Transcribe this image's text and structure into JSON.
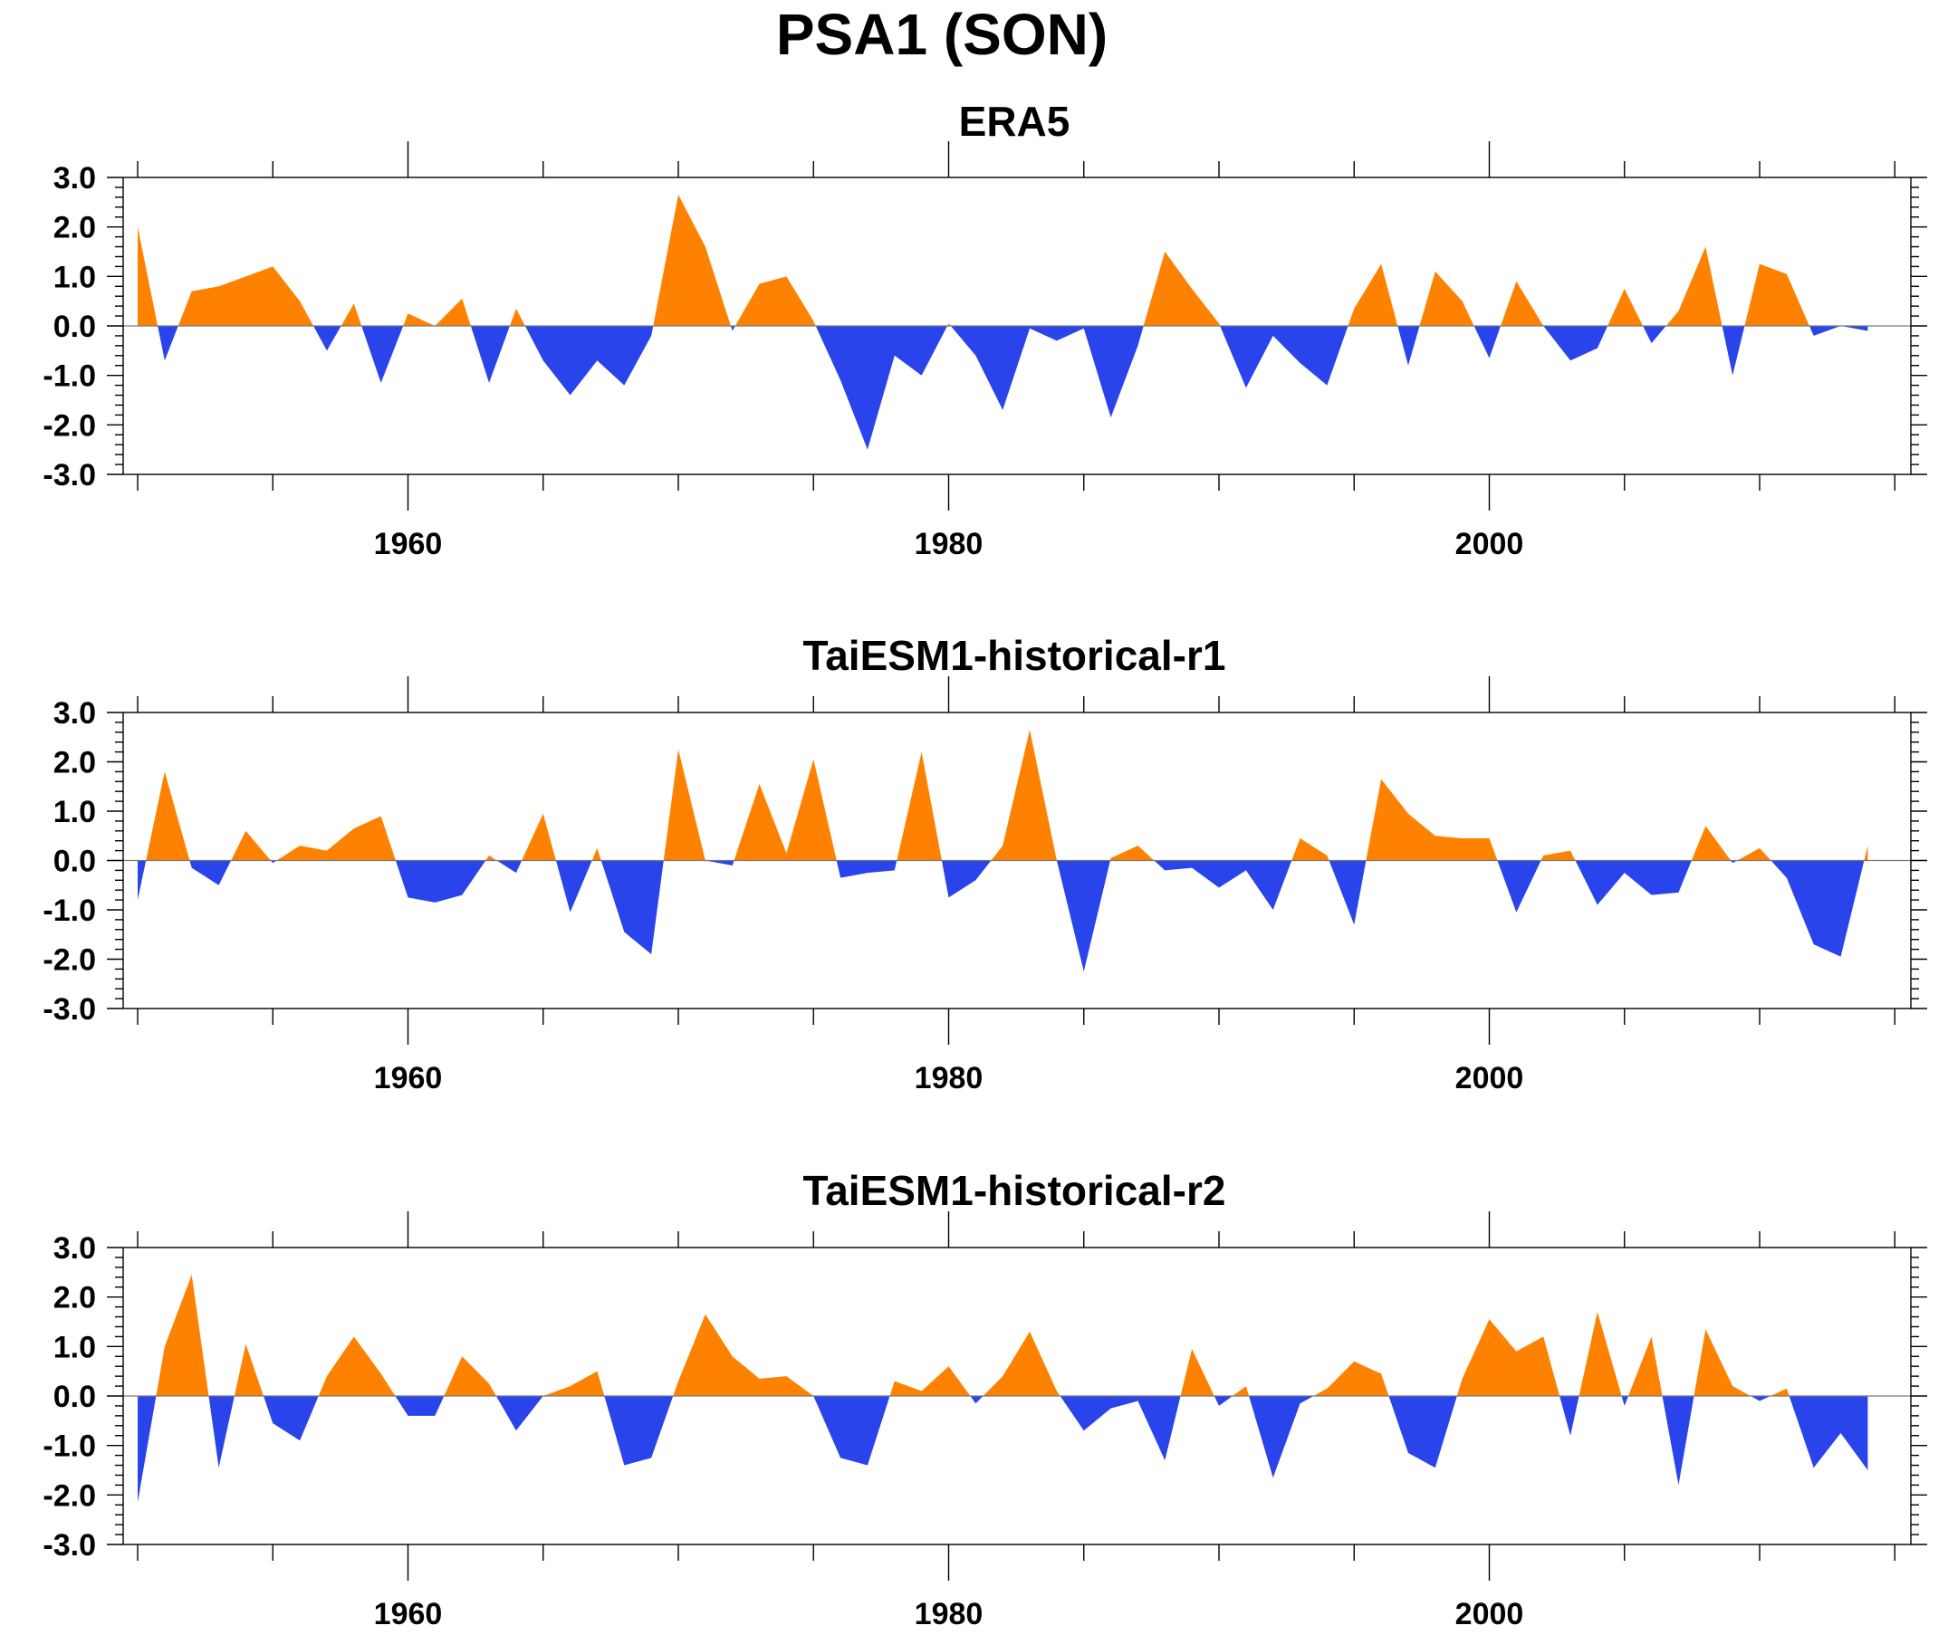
{
  "title": "PSA1 (SON)",
  "colors": {
    "positive": "#FF8100",
    "negative": "#2A44EB"
  },
  "chart_data": [
    {
      "type": "area",
      "title": "ERA5",
      "xlabel": "",
      "ylabel": "",
      "xlim": [
        1950,
        2015
      ],
      "ylim": [
        -3,
        3
      ],
      "x_ticks": [
        1960,
        1980,
        2000
      ],
      "y_ticks": [
        "-3.0",
        "-2.0",
        "-1.0",
        "0.0",
        "1.0",
        "2.0",
        "3.0"
      ],
      "grid": false,
      "x": [
        1950,
        1951,
        1952,
        1953,
        1954,
        1955,
        1956,
        1957,
        1958,
        1959,
        1960,
        1961,
        1962,
        1963,
        1964,
        1965,
        1966,
        1967,
        1968,
        1969,
        1970,
        1971,
        1972,
        1973,
        1974,
        1975,
        1976,
        1977,
        1978,
        1979,
        1980,
        1981,
        1982,
        1983,
        1984,
        1985,
        1986,
        1987,
        1988,
        1989,
        1990,
        1991,
        1992,
        1993,
        1994,
        1995,
        1996,
        1997,
        1998,
        1999,
        2000,
        2001,
        2002,
        2003,
        2004,
        2005,
        2006,
        2007,
        2008,
        2009,
        2010,
        2011,
        2012,
        2013,
        2014
      ],
      "values": [
        2.0,
        -0.7,
        0.7,
        0.8,
        1.0,
        1.2,
        0.5,
        -0.5,
        0.45,
        -1.15,
        0.25,
        0.0,
        0.55,
        -1.15,
        0.35,
        -0.7,
        -1.4,
        -0.7,
        -1.2,
        -0.2,
        2.65,
        1.6,
        -0.1,
        0.85,
        1.0,
        0.1,
        -1.1,
        -2.5,
        -0.6,
        -1.0,
        0.05,
        -0.6,
        -1.7,
        -0.05,
        -0.3,
        -0.05,
        -1.85,
        -0.4,
        1.5,
        0.75,
        0.05,
        -1.25,
        -0.2,
        -0.75,
        -1.2,
        0.35,
        1.25,
        -0.8,
        1.1,
        0.5,
        -0.65,
        0.9,
        0.0,
        -0.7,
        -0.45,
        0.75,
        -0.35,
        0.3,
        1.6,
        -1.0,
        1.25,
        1.05,
        -0.2,
        0.0,
        -0.1
      ]
    },
    {
      "type": "area",
      "title": "TaiESM1-historical-r1",
      "xlabel": "",
      "ylabel": "",
      "xlim": [
        1950,
        2015
      ],
      "ylim": [
        -3,
        3
      ],
      "x_ticks": [
        1960,
        1980,
        2000
      ],
      "y_ticks": [
        "-3.0",
        "-2.0",
        "-1.0",
        "0.0",
        "1.0",
        "2.0",
        "3.0"
      ],
      "grid": false,
      "x": [
        1950,
        1951,
        1952,
        1953,
        1954,
        1955,
        1956,
        1957,
        1958,
        1959,
        1960,
        1961,
        1962,
        1963,
        1964,
        1965,
        1966,
        1967,
        1968,
        1969,
        1970,
        1971,
        1972,
        1973,
        1974,
        1975,
        1976,
        1977,
        1978,
        1979,
        1980,
        1981,
        1982,
        1983,
        1984,
        1985,
        1986,
        1987,
        1988,
        1989,
        1990,
        1991,
        1992,
        1993,
        1994,
        1995,
        1996,
        1997,
        1998,
        1999,
        2000,
        2001,
        2002,
        2003,
        2004,
        2005,
        2006,
        2007,
        2008,
        2009,
        2010,
        2011,
        2012,
        2013,
        2014
      ],
      "values": [
        -0.8,
        1.8,
        -0.15,
        -0.5,
        0.6,
        -0.05,
        0.3,
        0.2,
        0.65,
        0.9,
        -0.75,
        -0.85,
        -0.7,
        0.1,
        -0.25,
        0.95,
        -1.05,
        0.25,
        -1.45,
        -1.9,
        2.25,
        0.0,
        -0.1,
        1.55,
        0.15,
        2.05,
        -0.35,
        -0.25,
        -0.2,
        2.2,
        -0.75,
        -0.4,
        0.3,
        2.65,
        0.0,
        -2.25,
        0.05,
        0.3,
        -0.2,
        -0.15,
        -0.55,
        -0.2,
        -1.0,
        0.45,
        0.1,
        -1.3,
        1.65,
        0.95,
        0.5,
        0.45,
        0.45,
        -1.05,
        0.1,
        0.2,
        -0.9,
        -0.25,
        -0.7,
        -0.65,
        0.7,
        -0.05,
        0.25,
        -0.35,
        -1.7,
        -1.95,
        0.3
      ]
    },
    {
      "type": "area",
      "title": "TaiESM1-historical-r2",
      "xlabel": "",
      "ylabel": "",
      "xlim": [
        1950,
        2015
      ],
      "ylim": [
        -3,
        3
      ],
      "x_ticks": [
        1960,
        1980,
        2000
      ],
      "y_ticks": [
        "-3.0",
        "-2.0",
        "-1.0",
        "0.0",
        "1.0",
        "2.0",
        "3.0"
      ],
      "grid": false,
      "x": [
        1950,
        1951,
        1952,
        1953,
        1954,
        1955,
        1956,
        1957,
        1958,
        1959,
        1960,
        1961,
        1962,
        1963,
        1964,
        1965,
        1966,
        1967,
        1968,
        1969,
        1970,
        1971,
        1972,
        1973,
        1974,
        1975,
        1976,
        1977,
        1978,
        1979,
        1980,
        1981,
        1982,
        1983,
        1984,
        1985,
        1986,
        1987,
        1988,
        1989,
        1990,
        1991,
        1992,
        1993,
        1994,
        1995,
        1996,
        1997,
        1998,
        1999,
        2000,
        2001,
        2002,
        2003,
        2004,
        2005,
        2006,
        2007,
        2008,
        2009,
        2010,
        2011,
        2012,
        2013,
        2014
      ],
      "values": [
        -2.15,
        1.0,
        2.45,
        -1.45,
        1.05,
        -0.55,
        -0.9,
        0.4,
        1.2,
        0.45,
        -0.4,
        -0.4,
        0.8,
        0.25,
        -0.7,
        0.0,
        0.2,
        0.5,
        -1.4,
        -1.25,
        0.3,
        1.65,
        0.8,
        0.35,
        0.4,
        0.0,
        -1.25,
        -1.4,
        0.3,
        0.1,
        0.6,
        -0.15,
        0.4,
        1.3,
        0.1,
        -0.7,
        -0.25,
        -0.1,
        -1.3,
        0.95,
        -0.2,
        0.2,
        -1.65,
        -0.15,
        0.15,
        0.7,
        0.45,
        -1.15,
        -1.45,
        0.35,
        1.55,
        0.9,
        1.2,
        -0.8,
        1.7,
        -0.2,
        1.2,
        -1.8,
        1.35,
        0.2,
        -0.1,
        0.15,
        -1.45,
        -0.75,
        -1.5
      ]
    }
  ]
}
